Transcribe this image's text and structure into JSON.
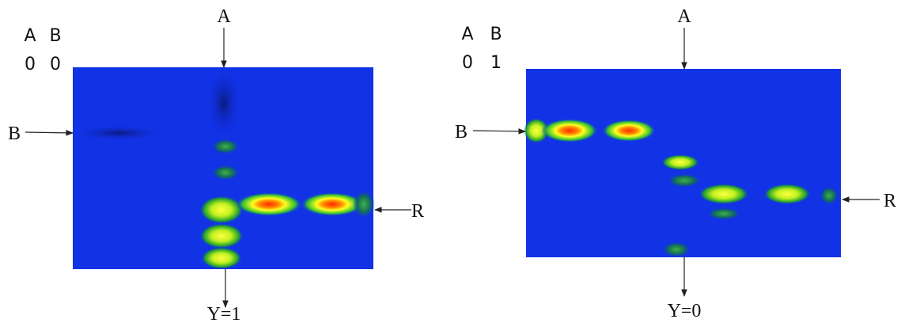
{
  "panels": [
    {
      "inputs": {
        "headers": [
          "A",
          "B"
        ],
        "values": [
          0,
          0
        ]
      },
      "ports": {
        "top": "A",
        "left": "B",
        "right": "R",
        "bottom": "Y=1"
      }
    },
    {
      "inputs": {
        "headers": [
          "A",
          "B"
        ],
        "values": [
          0,
          1
        ]
      },
      "ports": {
        "top": "A",
        "left": "B",
        "right": "R",
        "bottom": "Y=0"
      }
    }
  ]
}
